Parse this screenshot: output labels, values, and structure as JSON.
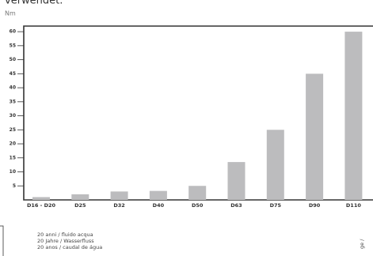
{
  "chart_data": {
    "type": "bar",
    "heading": "verwendet.",
    "y_label": "Nm",
    "categories": [
      "D16 - D20",
      "D25",
      "D32",
      "D40",
      "D50",
      "D63",
      "D75",
      "D90",
      "D110"
    ],
    "values": [
      1,
      2,
      3,
      3.2,
      5,
      13.5,
      25,
      45,
      60
    ],
    "color": "#bcbcbe",
    "ylim": [
      0,
      62
    ],
    "yticks": [
      5,
      10,
      15,
      20,
      25,
      30,
      35,
      40,
      45,
      50,
      55,
      60
    ],
    "notes": [
      "20 anni / fluido acqua",
      "20 Jahre / Wasserfluss",
      "20 anos / caudal de água"
    ],
    "side_text": "ge /"
  }
}
